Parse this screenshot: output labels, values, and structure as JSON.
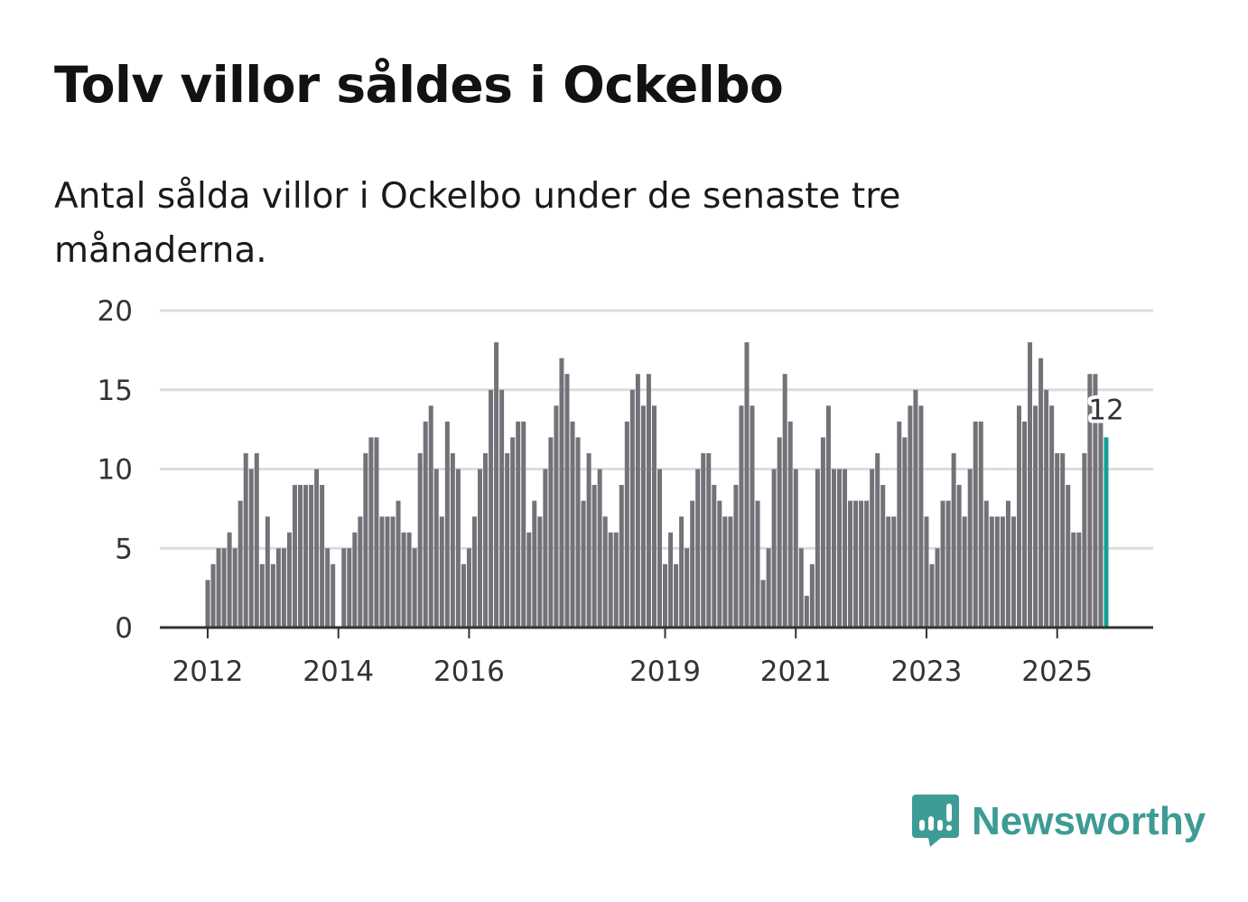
{
  "header": {
    "title": "Tolv villor såldes i Ockelbo",
    "subtitle": "Antal sålda villor i Ockelbo under de senaste tre månaderna."
  },
  "brand": {
    "name": "Newsworthy",
    "color": "#3d9c95",
    "icon": "bar-chart-speech-bubble-icon"
  },
  "chart_data": {
    "type": "bar",
    "title": "Tolv villor såldes i Ockelbo",
    "xlabel": "",
    "ylabel": "",
    "ylim": [
      0,
      20
    ],
    "yticks": [
      0,
      5,
      10,
      15,
      20
    ],
    "xticks": [
      "2012",
      "2014",
      "2016",
      "2019",
      "2021",
      "2023",
      "2025"
    ],
    "start": "2012-01",
    "end": "2025-10",
    "grid": true,
    "bar_color": "#737278",
    "highlight_color": "#12a097",
    "highlight_label": "12",
    "series": [
      {
        "name": "Sålda villor",
        "values": [
          3,
          4,
          5,
          5,
          6,
          5,
          8,
          11,
          10,
          11,
          4,
          7,
          4,
          5,
          5,
          6,
          9,
          9,
          9,
          9,
          10,
          9,
          5,
          4,
          0,
          5,
          5,
          6,
          7,
          11,
          12,
          12,
          7,
          7,
          7,
          8,
          6,
          6,
          5,
          11,
          13,
          14,
          10,
          7,
          13,
          11,
          10,
          4,
          5,
          7,
          10,
          11,
          15,
          18,
          15,
          11,
          12,
          13,
          13,
          6,
          8,
          7,
          10,
          12,
          14,
          17,
          16,
          13,
          12,
          8,
          11,
          9,
          10,
          7,
          6,
          6,
          9,
          13,
          15,
          16,
          14,
          16,
          14,
          10,
          4,
          6,
          4,
          7,
          5,
          8,
          10,
          11,
          11,
          9,
          8,
          7,
          7,
          9,
          14,
          18,
          14,
          8,
          3,
          5,
          10,
          12,
          16,
          13,
          10,
          5,
          2,
          4,
          10,
          12,
          14,
          10,
          10,
          10,
          8,
          8,
          8,
          8,
          10,
          11,
          9,
          7,
          7,
          13,
          12,
          14,
          15,
          14,
          7,
          4,
          5,
          8,
          8,
          11,
          9,
          7,
          10,
          13,
          13,
          8,
          7,
          7,
          7,
          8,
          7,
          14,
          13,
          18,
          14,
          17,
          15,
          14,
          11,
          11,
          9,
          6,
          6,
          11,
          16,
          16,
          13,
          12
        ]
      }
    ]
  }
}
